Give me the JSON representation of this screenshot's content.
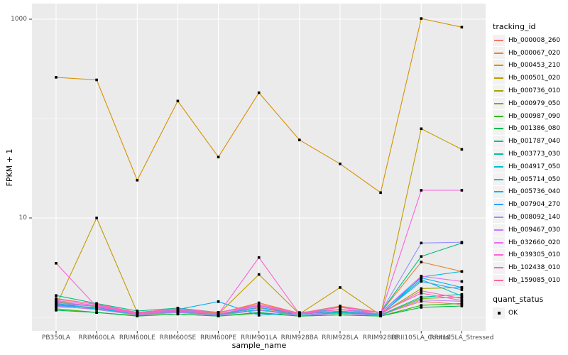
{
  "figure": {
    "background": "#FFFFFF",
    "panel_background": "#EBEBEB",
    "grid_color": "#FFFFFF",
    "point_color": "#000000",
    "tick_color": "#333333",
    "tick_label_color": "#4D4D4D",
    "legend_key_background": "#F2F2F2"
  },
  "axes": {
    "y_title": "FPKM + 1",
    "x_title": "sample_name",
    "y_ticks": [
      {
        "label": "1000",
        "value": 1000
      },
      {
        "label": "10",
        "value": 10
      }
    ]
  },
  "legend": {
    "color_title": "tracking_id",
    "shape_title": "quant_status",
    "shape_items": [
      {
        "label": "OK",
        "shape": "filled-square"
      }
    ]
  },
  "chart_data": {
    "type": "line",
    "title": "",
    "xlabel": "sample_name",
    "ylabel": "FPKM + 1",
    "y_scale": "log10",
    "ylim": [
      1,
      1100
    ],
    "y_gridlines_major": [
      10,
      1000
    ],
    "y_gridlines_minor": [
      1,
      100
    ],
    "grid": true,
    "legend_position": "right",
    "point_shape": "filled-square",
    "point_color": "#000000",
    "quant_status_all": "OK",
    "categories": [
      "PB350LA",
      "RRIM600LA",
      "RRIM600LE",
      "RRIM600SE",
      "RRIM600PE",
      "RRIM901LA",
      "RRIM928BA",
      "RRIM928LA",
      "RRIM928LE",
      "RRII105LA_Control",
      "RRII105LA_Stressed"
    ],
    "series": [
      {
        "name": "Hb_000008_260",
        "color": "#F8766D",
        "values": [
          1.35,
          1.25,
          1.08,
          1.12,
          1.06,
          1.25,
          1.05,
          1.12,
          1.06,
          1.45,
          1.35
        ]
      },
      {
        "name": "Hb_000067_020",
        "color": "#EA8331",
        "values": [
          1.55,
          1.35,
          1.1,
          1.18,
          1.1,
          1.4,
          1.1,
          1.3,
          1.12,
          3.6,
          2.9
        ]
      },
      {
        "name": "Hb_000453_210",
        "color": "#D89000",
        "values": [
          260,
          245,
          24,
          150,
          41,
          182,
          61,
          35,
          18,
          1015,
          830
        ]
      },
      {
        "name": "Hb_000501_020",
        "color": "#C09B00",
        "values": [
          1.3,
          10,
          1.12,
          1.2,
          1.08,
          2.7,
          1.08,
          2.0,
          1.05,
          79,
          49
        ]
      },
      {
        "name": "Hb_000736_010",
        "color": "#A3A500",
        "values": [
          1.45,
          1.28,
          1.1,
          1.18,
          1.08,
          1.25,
          1.08,
          1.16,
          1.08,
          1.95,
          2.0
        ]
      },
      {
        "name": "Hb_000979_050",
        "color": "#7CAE00",
        "values": [
          1.3,
          1.2,
          1.06,
          1.12,
          1.05,
          1.18,
          1.05,
          1.1,
          1.05,
          1.55,
          1.6
        ]
      },
      {
        "name": "Hb_000987_090",
        "color": "#39B600",
        "values": [
          1.22,
          1.12,
          1.04,
          1.08,
          1.03,
          1.1,
          1.03,
          1.06,
          1.03,
          1.32,
          1.38
        ]
      },
      {
        "name": "Hb_001386_080",
        "color": "#00BB4E",
        "values": [
          1.18,
          1.12,
          1.03,
          1.08,
          1.03,
          1.12,
          1.03,
          1.06,
          1.03,
          1.26,
          1.3
        ]
      },
      {
        "name": "Hb_001787_040",
        "color": "#00BF7D",
        "values": [
          1.66,
          1.38,
          1.16,
          1.24,
          1.12,
          1.32,
          1.1,
          1.2,
          1.12,
          4.1,
          5.6
        ]
      },
      {
        "name": "Hb_003773_030",
        "color": "#00C1A3",
        "values": [
          1.38,
          1.22,
          1.08,
          1.14,
          1.06,
          1.2,
          1.05,
          1.12,
          1.06,
          1.6,
          1.7
        ]
      },
      {
        "name": "Hb_004917_050",
        "color": "#00BFC4",
        "values": [
          1.32,
          1.26,
          1.08,
          1.16,
          1.08,
          1.26,
          1.08,
          1.14,
          1.08,
          2.4,
          1.64
        ]
      },
      {
        "name": "Hb_005714_050",
        "color": "#00BAE0",
        "values": [
          1.28,
          1.22,
          1.08,
          1.14,
          1.06,
          1.2,
          1.05,
          1.1,
          1.05,
          2.55,
          2.9
        ]
      },
      {
        "name": "Hb_005736_040",
        "color": "#00B0F6",
        "values": [
          1.36,
          1.3,
          1.12,
          1.2,
          1.44,
          1.05,
          1.12,
          1.2,
          1.12,
          2.5,
          2.0
        ]
      },
      {
        "name": "Hb_007904_270",
        "color": "#35A2FF",
        "values": [
          1.3,
          1.26,
          1.08,
          1.15,
          1.08,
          1.26,
          1.08,
          1.15,
          1.08,
          2.3,
          1.9
        ]
      },
      {
        "name": "Hb_008092_140",
        "color": "#9590FF",
        "values": [
          1.42,
          1.3,
          1.12,
          1.2,
          1.12,
          1.3,
          1.1,
          1.2,
          1.12,
          5.6,
          5.7
        ]
      },
      {
        "name": "Hb_009467_030",
        "color": "#C77CFF",
        "values": [
          1.3,
          1.2,
          1.06,
          1.12,
          1.05,
          1.18,
          1.04,
          1.1,
          1.04,
          1.5,
          1.45
        ]
      },
      {
        "name": "Hb_032660_020",
        "color": "#E76BF3",
        "values": [
          1.48,
          1.32,
          1.12,
          1.22,
          1.12,
          1.32,
          1.1,
          1.28,
          1.12,
          2.6,
          2.3
        ]
      },
      {
        "name": "Hb_039305_010",
        "color": "#FA62DB",
        "values": [
          3.5,
          1.28,
          1.08,
          1.15,
          1.08,
          4.0,
          1.08,
          1.2,
          1.08,
          19,
          19
        ]
      },
      {
        "name": "Hb_102438_010",
        "color": "#FF61C3",
        "values": [
          1.4,
          1.3,
          1.1,
          1.18,
          1.08,
          1.3,
          1.08,
          1.2,
          1.08,
          1.85,
          1.55
        ]
      },
      {
        "name": "Hb_159085_010",
        "color": "#FF67A4",
        "values": [
          1.52,
          1.36,
          1.12,
          1.22,
          1.12,
          1.36,
          1.1,
          1.26,
          1.12,
          1.75,
          1.48
        ]
      }
    ]
  }
}
